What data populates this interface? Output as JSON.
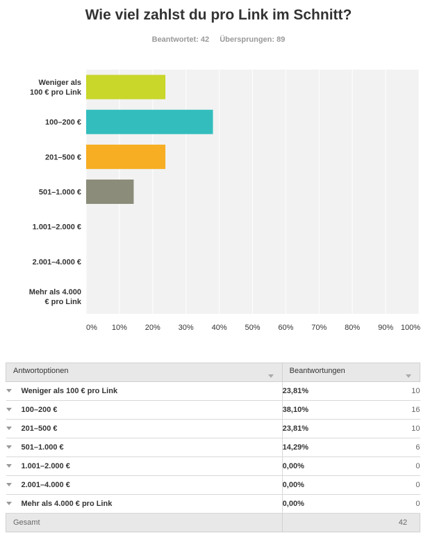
{
  "question": {
    "title": "Wie viel zahlst du pro Link im Schnitt?",
    "answered": "Beantwortet: 42",
    "skipped": "Übersprungen: 89"
  },
  "chart_data": {
    "type": "bar",
    "orientation": "horizontal",
    "categories": [
      "Weniger als 100 € pro Link",
      "100–200 €",
      "201–500 €",
      "501–1.000 €",
      "1.001–2.000 €",
      "2.001–4.000 €",
      "Mehr als 4.000 € pro Link"
    ],
    "category_lines": [
      [
        "Weniger als",
        "100 € pro Link"
      ],
      [
        "100–200 €"
      ],
      [
        "201–500 €"
      ],
      [
        "501–1.000 €"
      ],
      [
        "1.001–2.000 €"
      ],
      [
        "2.001–4.000 €"
      ],
      [
        "Mehr als 4.000",
        "€ pro Link"
      ]
    ],
    "values": [
      23.81,
      38.1,
      23.81,
      14.29,
      0,
      0,
      0
    ],
    "colors": [
      "#c9d62a",
      "#33bdbd",
      "#f7ae23",
      "#8c8c7a",
      "#999999",
      "#999999",
      "#999999"
    ],
    "xlim": [
      0,
      100
    ],
    "ticks": [
      "0%",
      "10%",
      "20%",
      "30%",
      "40%",
      "50%",
      "60%",
      "70%",
      "80%",
      "90%",
      "100%"
    ],
    "grid": true,
    "background": "#f2f2f2"
  },
  "table": {
    "headers": [
      "Antwortoptionen",
      "Beantwortungen"
    ],
    "rows": [
      {
        "option": "Weniger als 100 € pro Link",
        "pct": "23,81%",
        "count": "10"
      },
      {
        "option": "100–200 €",
        "pct": "38,10%",
        "count": "16"
      },
      {
        "option": "201–500 €",
        "pct": "23,81%",
        "count": "10"
      },
      {
        "option": "501–1.000 €",
        "pct": "14,29%",
        "count": "6"
      },
      {
        "option": "1.001–2.000 €",
        "pct": "0,00%",
        "count": "0"
      },
      {
        "option": "2.001–4.000 €",
        "pct": "0,00%",
        "count": "0"
      },
      {
        "option": "Mehr als 4.000 € pro Link",
        "pct": "0,00%",
        "count": "0"
      }
    ],
    "total_label": "Gesamt",
    "total_value": "42"
  }
}
